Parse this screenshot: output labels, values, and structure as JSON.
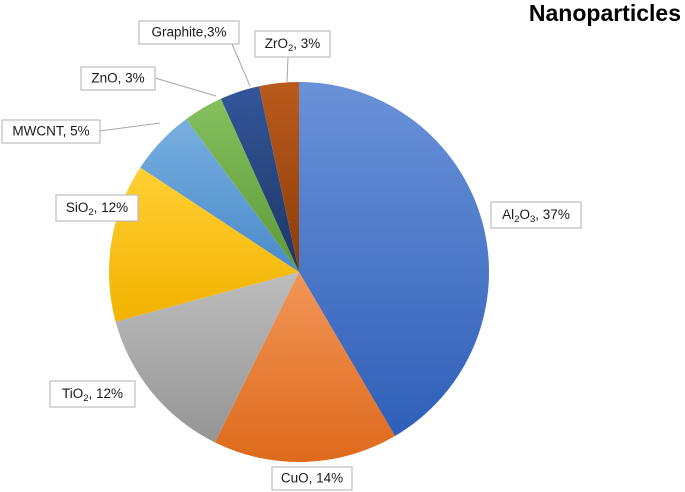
{
  "chart_data": {
    "type": "pie",
    "title": "Nanoparticles",
    "slices": [
      {
        "label": "Al2O3, 37%",
        "base": "Al",
        "sub": "2",
        "mid": "O",
        "sub2": "3",
        "rest": ", 37%",
        "value": 37,
        "color": "#4472c4",
        "color_light": "#6a92d8",
        "color_dark": "#2f5fb8"
      },
      {
        "label": "CuO, 14%",
        "base": "CuO, 14%",
        "value": 14,
        "color": "#ed7d31",
        "color_light": "#f29558",
        "color_dark": "#de6a1c"
      },
      {
        "label": "TiO2, 12%",
        "base": "TiO",
        "sub": "2",
        "rest": ", 12%",
        "value": 12,
        "color": "#a5a5a5",
        "color_light": "#bdbdbd",
        "color_dark": "#959595"
      },
      {
        "label": "SiO2, 12%",
        "base": "SiO",
        "sub": "2",
        "rest": ", 12%",
        "value": 12,
        "color": "#ffc000",
        "color_light": "#ffd034",
        "color_dark": "#f2b200"
      },
      {
        "label": "MWCNT, 5%",
        "base": "MWCNT, 5%",
        "value": 5,
        "color": "#5b9bd5",
        "color_light": "#78afe0",
        "color_dark": "#4a8acb"
      },
      {
        "label": "ZnO, 3%",
        "base": "ZnO, 3%",
        "value": 3,
        "color": "#70ad47",
        "color_light": "#86c05e",
        "color_dark": "#5e9a38"
      },
      {
        "label": "Graphite,3%",
        "base": "Graphite,3%",
        "value": 3,
        "color": "#264478",
        "color_light": "#33569a",
        "color_dark": "#1d3766"
      },
      {
        "label": "ZrO2, 3%",
        "base": "ZrO",
        "sub": "2",
        "rest": ", 3%",
        "value": 3,
        "color": "#9e480e",
        "color_light": "#bb5a1c",
        "color_dark": "#8a3d0a"
      }
    ]
  }
}
